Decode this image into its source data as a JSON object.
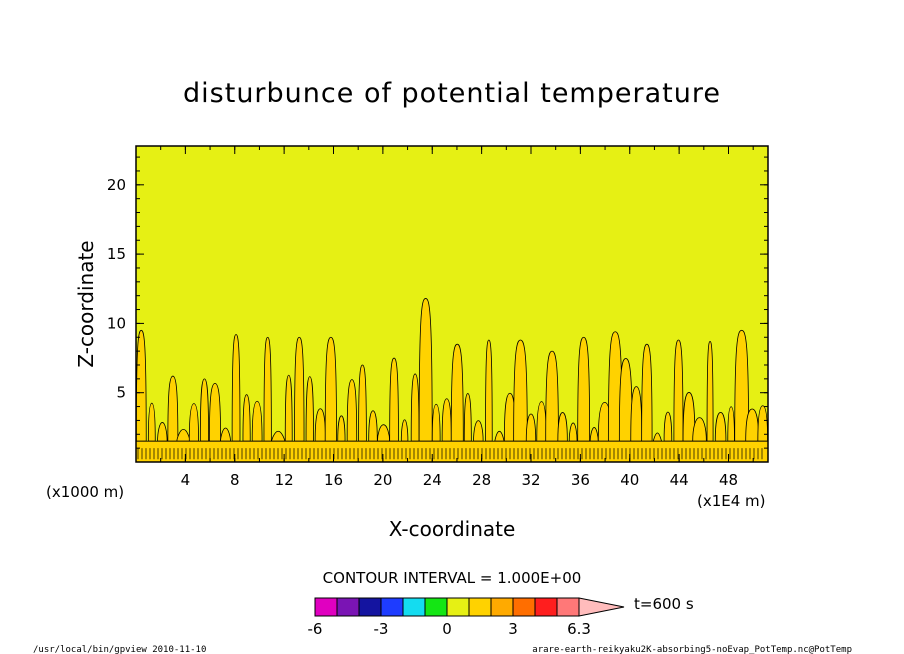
{
  "chart_data": {
    "type": "heatmap",
    "title": "disturbunce of potential temperature",
    "xlabel": "X-coordinate",
    "ylabel": "Z-coordinate",
    "x_unit_label": "(x1000 m)",
    "x_scale_label": "(x1E4 m)",
    "xlim": [
      0,
      51.2
    ],
    "ylim": [
      0,
      22.8
    ],
    "x_ticks": [
      "4",
      "8",
      "12",
      "16",
      "20",
      "24",
      "28",
      "32",
      "36",
      "40",
      "44",
      "48"
    ],
    "y_ticks": [
      "5",
      "10",
      "15",
      "20"
    ],
    "contour_interval_text": "CONTOUR INTERVAL = 1.000E+00",
    "time_label": "t=600 s",
    "colorbar": {
      "levels": [
        -6,
        -5,
        -4,
        -3,
        -2,
        -1,
        0,
        1,
        2,
        3,
        4,
        5,
        6,
        6.3
      ],
      "tick_labels": [
        "-6",
        "-3",
        "0",
        "3",
        "6.3"
      ],
      "colors": [
        "#e000c0",
        "#7a14b4",
        "#1414a0",
        "#1e3cff",
        "#14dcf0",
        "#14e614",
        "#e6f014",
        "#ffd200",
        "#ffaa00",
        "#ff6e00",
        "#ff1e1e",
        "#ff7878",
        "#ffbcbc"
      ]
    },
    "background_level": "0",
    "plume_peak_z": [
      9.5,
      8,
      7,
      6.2,
      9,
      7.5,
      6,
      9.4,
      11.8,
      9.2,
      8.5,
      8.5,
      9,
      8.8,
      8.8,
      9,
      8.7,
      8.8,
      9
    ],
    "near_surface_layer_z": [
      0,
      1.5
    ]
  },
  "footer": {
    "left": "/usr/local/bin/gpview  2010-11-10",
    "right": "arare-earth-reikyaku2K-absorbing5-noEvap_PotTemp.nc@PotTemp"
  }
}
